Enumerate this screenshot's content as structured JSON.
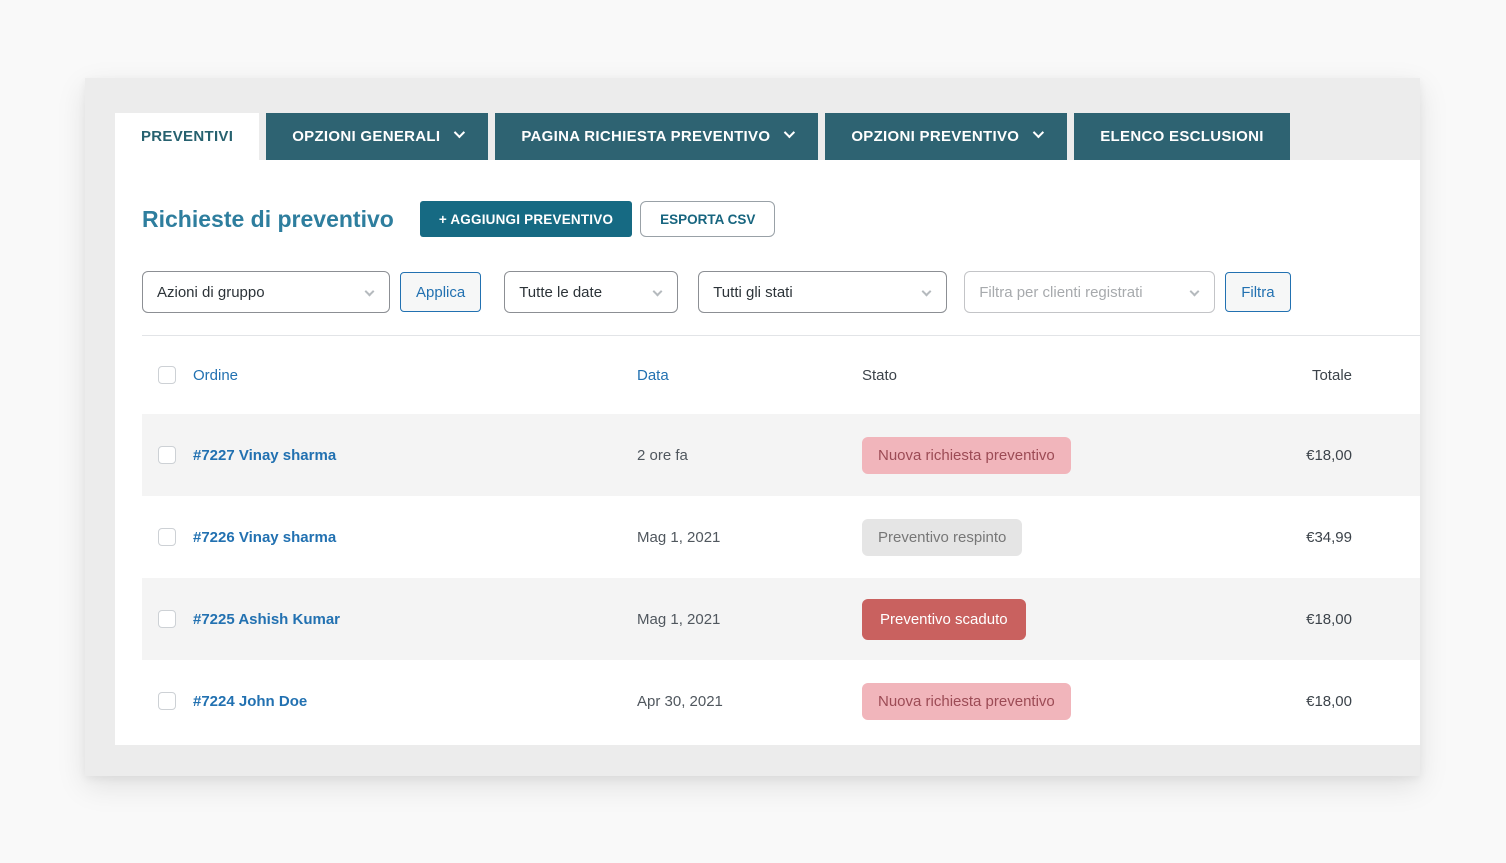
{
  "tabs": [
    {
      "label": "PREVENTIVI",
      "active": true,
      "has_chevron": false
    },
    {
      "label": "OPZIONI GENERALI",
      "active": false,
      "has_chevron": true
    },
    {
      "label": "PAGINA RICHIESTA PREVENTIVO",
      "active": false,
      "has_chevron": true
    },
    {
      "label": "OPZIONI PREVENTIVO",
      "active": false,
      "has_chevron": true
    },
    {
      "label": "ELENCO ESCLUSIONI",
      "active": false,
      "has_chevron": false
    }
  ],
  "toolbar": {
    "title": "Richieste di preventivo",
    "add_button": "+ AGGIUNGI PREVENTIVO",
    "export_button": "ESPORTA CSV"
  },
  "filters": {
    "bulk_actions_value": "Azioni di gruppo",
    "apply_button": "Applica",
    "dates_value": "Tutte le date",
    "states_value": "Tutti gli stati",
    "customers_placeholder": "Filtra per clienti registrati",
    "filter_button": "Filtra"
  },
  "table": {
    "columns": {
      "order": "Ordine",
      "date": "Data",
      "status": "Stato",
      "total": "Totale"
    },
    "rows": [
      {
        "order": "#7227 Vinay sharma",
        "date": "2 ore fa",
        "status": "Nuova richiesta preventivo",
        "status_type": "new",
        "total": "€18,00"
      },
      {
        "order": "#7226 Vinay sharma",
        "date": "Mag 1, 2021",
        "status": "Preventivo respinto",
        "status_type": "rejected",
        "total": "€34,99"
      },
      {
        "order": "#7225 Ashish Kumar",
        "date": "Mag 1, 2021",
        "status": "Preventivo scaduto",
        "status_type": "expired",
        "total": "€18,00"
      },
      {
        "order": "#7224 John Doe",
        "date": "Apr 30, 2021",
        "status": "Nuova richiesta preventivo",
        "status_type": "new",
        "total": "€18,00"
      }
    ]
  },
  "colors": {
    "tab_teal": "#2e6372",
    "button_teal": "#166a83",
    "heading_teal": "#2e7e9e",
    "link_blue": "#2271b1",
    "badge_new_bg": "#f1b5bb",
    "badge_new_text": "#9c4b55",
    "badge_rejected_bg": "#e5e5e5",
    "badge_rejected_text": "#777777",
    "badge_expired_bg": "#c9615f",
    "badge_expired_text": "#ffffff",
    "row_alt_bg": "#f4f4f4"
  }
}
